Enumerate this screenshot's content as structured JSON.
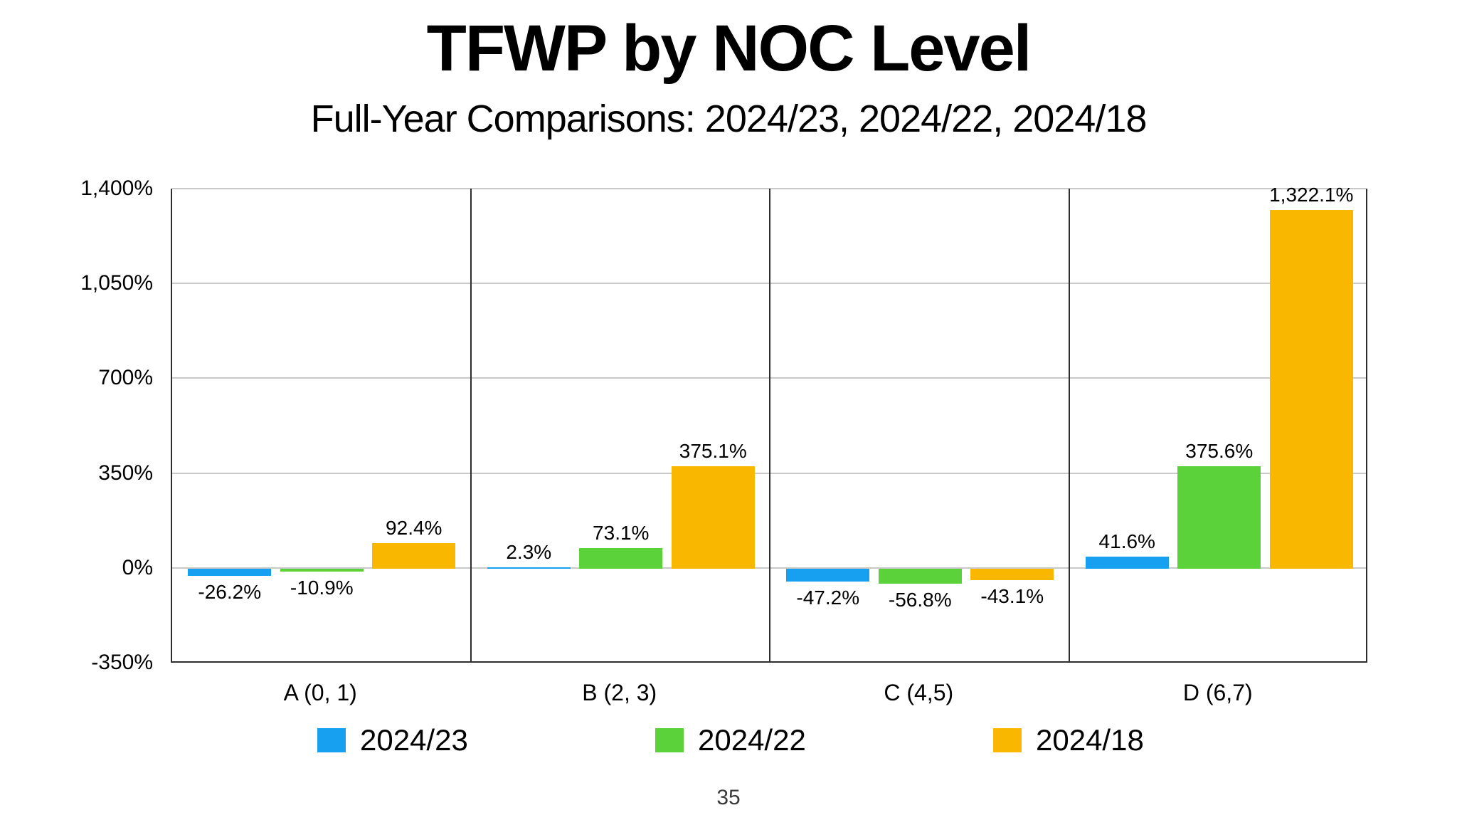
{
  "title": "TFWP by NOC Level",
  "subtitle": "Full-Year Comparisons: 2024/23, 2024/22, 2024/18",
  "page_number": "35",
  "colors": {
    "background": "#ffffff",
    "grid": "#c9c9c9",
    "axis": "#2d2d2d",
    "text": "#000000"
  },
  "chart_data": {
    "type": "bar",
    "title": "TFWP by NOC Level",
    "subtitle": "Full-Year Comparisons: 2024/23, 2024/22, 2024/18",
    "categories": [
      "A (0, 1)",
      "B (2, 3)",
      "C (4,5)",
      "D (6,7)"
    ],
    "series": [
      {
        "name": "2024/23",
        "color": "#18a0f0",
        "values": [
          -26.2,
          2.3,
          -47.2,
          41.6
        ],
        "labels": [
          "-26.2%",
          "2.3%",
          "-47.2%",
          "41.6%"
        ]
      },
      {
        "name": "2024/22",
        "color": "#5cd23a",
        "values": [
          -10.9,
          73.1,
          -56.8,
          375.6
        ],
        "labels": [
          "-10.9%",
          "73.1%",
          "-56.8%",
          "375.6%"
        ]
      },
      {
        "name": "2024/18",
        "color": "#f9b700",
        "values": [
          92.4,
          375.1,
          -43.1,
          1322.1
        ],
        "labels": [
          "92.4%",
          "375.1%",
          "-43.1%",
          "1,322.1%"
        ]
      }
    ],
    "xlabel": "",
    "ylabel": "",
    "ylim": [
      -350,
      1400
    ],
    "y_ticks": [
      1400,
      1050,
      700,
      350,
      0,
      -350
    ],
    "y_tick_labels": [
      "1,400%",
      "1,050%",
      "700%",
      "350%",
      "0%",
      "-350%"
    ],
    "grid": true,
    "legend_position": "bottom"
  }
}
